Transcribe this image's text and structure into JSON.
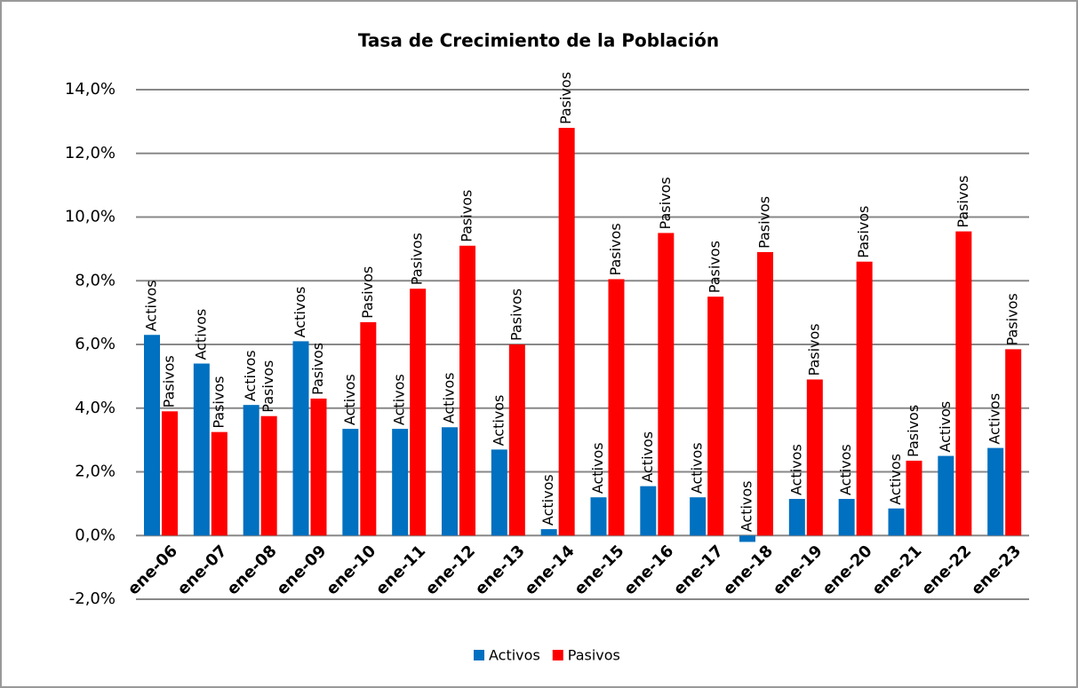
{
  "chart_data": {
    "type": "bar",
    "title": "Tasa de Crecimiento de la Población",
    "categories": [
      "ene-06",
      "ene-07",
      "ene-08",
      "ene-09",
      "ene-10",
      "ene-11",
      "ene-12",
      "ene-13",
      "ene-14",
      "ene-15",
      "ene-16",
      "ene-17",
      "ene-18",
      "ene-19",
      "ene-20",
      "ene-21",
      "ene-22",
      "ene-23"
    ],
    "series": [
      {
        "name": "Activos",
        "color": "#0070c0",
        "values": [
          6.3,
          5.4,
          4.1,
          6.1,
          3.35,
          3.35,
          3.4,
          2.7,
          0.2,
          1.2,
          1.55,
          1.2,
          -0.2,
          1.15,
          1.15,
          0.85,
          2.5,
          2.75
        ]
      },
      {
        "name": "Pasivos",
        "color": "#ff0000",
        "values": [
          3.9,
          3.25,
          3.75,
          4.3,
          6.7,
          7.75,
          9.1,
          6.0,
          12.8,
          8.05,
          9.5,
          7.5,
          8.9,
          4.9,
          8.6,
          2.35,
          9.55,
          5.85
        ]
      }
    ],
    "ylim": [
      -2,
      14
    ],
    "yticks": [
      {
        "value": -2,
        "label": "-2,0%"
      },
      {
        "value": 0,
        "label": "0,0%"
      },
      {
        "value": 2,
        "label": "2,0%"
      },
      {
        "value": 4,
        "label": "4,0%"
      },
      {
        "value": 6,
        "label": "6,0%"
      },
      {
        "value": 8,
        "label": "8,0%"
      },
      {
        "value": 10,
        "label": "10,0%"
      },
      {
        "value": 12,
        "label": "12,0%"
      },
      {
        "value": 14,
        "label": "14,0%"
      }
    ],
    "grid": true,
    "legend": "bottom"
  }
}
